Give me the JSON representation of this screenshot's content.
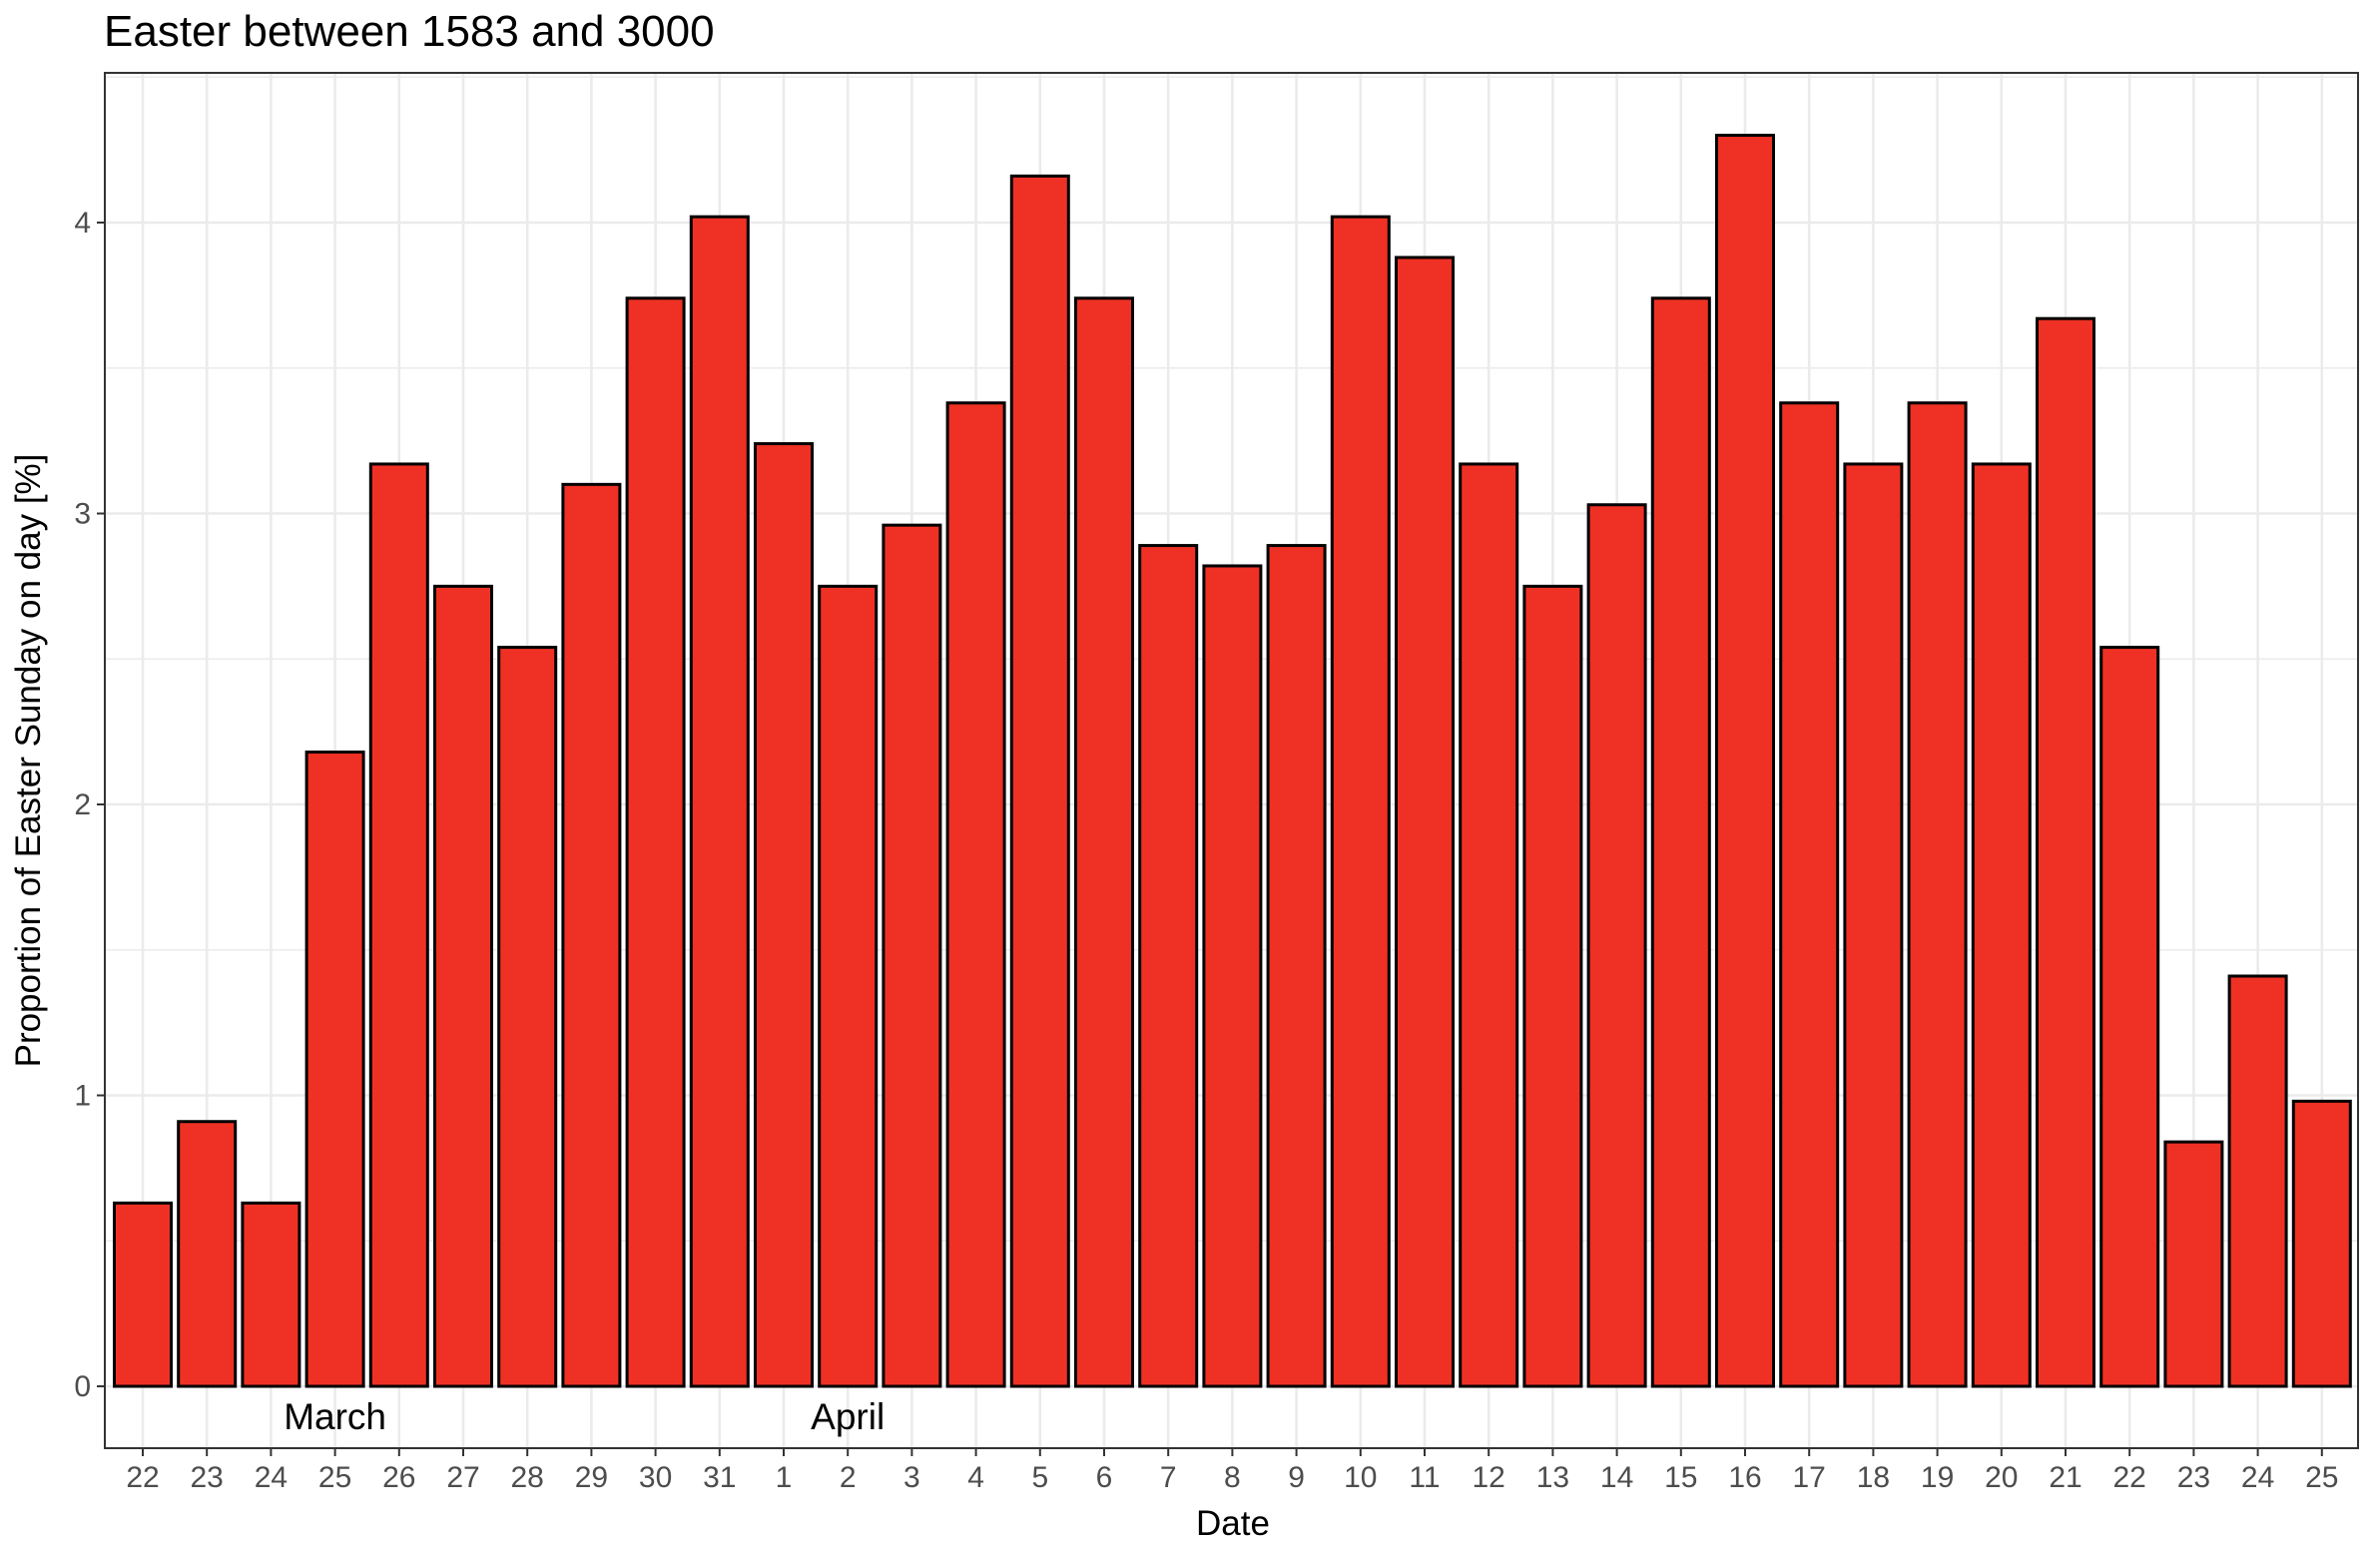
{
  "chart_data": {
    "type": "bar",
    "title": "Easter between 1583 and 3000",
    "xlabel": "Date",
    "ylabel": "Proportion of Easter Sunday on day [%]",
    "ylim": [
      0,
      4.5
    ],
    "yticks": [
      "0",
      "1",
      "2",
      "3",
      "4"
    ],
    "grid": true,
    "categories": [
      "22",
      "23",
      "24",
      "25",
      "26",
      "27",
      "28",
      "29",
      "30",
      "31",
      "1",
      "2",
      "3",
      "4",
      "5",
      "6",
      "7",
      "8",
      "9",
      "10",
      "11",
      "12",
      "13",
      "14",
      "15",
      "16",
      "17",
      "18",
      "19",
      "20",
      "21",
      "22",
      "23",
      "24",
      "25"
    ],
    "values": [
      0.63,
      0.91,
      0.63,
      2.18,
      3.17,
      2.75,
      2.54,
      3.1,
      3.74,
      4.02,
      3.24,
      2.75,
      2.96,
      3.38,
      4.16,
      3.74,
      2.89,
      2.82,
      2.89,
      4.02,
      3.88,
      3.17,
      2.75,
      3.03,
      3.74,
      4.3,
      3.38,
      3.17,
      3.38,
      3.17,
      3.67,
      2.54,
      0.84,
      1.41,
      0.98
    ],
    "annotations": [
      {
        "label": "March",
        "at_category_index": 3
      },
      {
        "label": "April",
        "at_category_index": 11
      }
    ],
    "colors": {
      "bar_fill": "#ee3124",
      "bar_stroke": "#000000",
      "grid": "#ebebeb",
      "panel_border": "#333333",
      "tick_text": "#4d4d4d"
    }
  }
}
